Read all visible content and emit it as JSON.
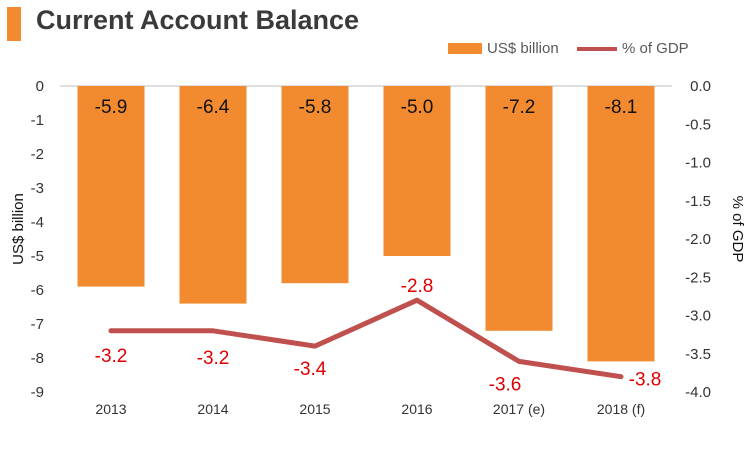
{
  "header": {
    "title": "Current Account Balance"
  },
  "colors": {
    "accent": "#f28b30",
    "bar": "#f28b30",
    "line": "#c0504d",
    "line_label": "#e00000"
  },
  "chart_data": {
    "type": "bar+line",
    "title": "Current Account Balance",
    "categories": [
      "2013",
      "2014",
      "2015",
      "2016",
      "2017 (e)",
      "2018 (f)"
    ],
    "series": [
      {
        "name": "US$ billion",
        "type": "bar",
        "axis": "left",
        "values": [
          -5.9,
          -6.4,
          -5.8,
          -5.0,
          -7.2,
          -8.1
        ],
        "labels": [
          "-5.9",
          "-6.4",
          "-5.8",
          "-5.0",
          "-7.2",
          "-8.1"
        ]
      },
      {
        "name": "% of GDP",
        "type": "line",
        "axis": "right",
        "values": [
          -3.2,
          -3.2,
          -3.4,
          -2.8,
          -3.6,
          -3.8
        ],
        "labels": [
          "-3.2",
          "-3.2",
          "-3.4",
          "-2.8",
          "-3.6",
          "-3.8"
        ]
      }
    ],
    "ylabel_left": "US$ billion",
    "ylabel_right": "% of GDP",
    "ylim_left": [
      -9,
      0
    ],
    "ylim_right": [
      -4.0,
      0.0
    ],
    "yticks_left": [
      "0",
      "-1",
      "-2",
      "-3",
      "-4",
      "-5",
      "-6",
      "-7",
      "-8",
      "-9"
    ],
    "yticks_right": [
      "0.0",
      "-0.5",
      "-1.0",
      "-1.5",
      "-2.0",
      "-2.5",
      "-3.0",
      "-3.5",
      "-4.0"
    ],
    "legend": "top-right"
  }
}
